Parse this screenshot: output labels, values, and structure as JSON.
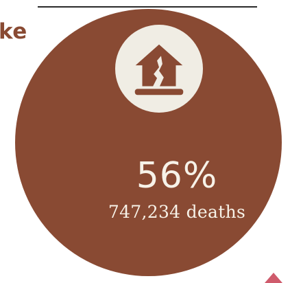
{
  "heading": {
    "fragment": "ke"
  },
  "stat": {
    "percent": "56%",
    "deaths": "747,234 deaths"
  },
  "icon": {
    "name": "earthquake-house-icon"
  },
  "colors": {
    "circle": "#894a33",
    "badge": "#f0ede4",
    "text_light": "#f7f2e8",
    "heading": "#894a33",
    "corner_accent": "#cf5b6c"
  }
}
